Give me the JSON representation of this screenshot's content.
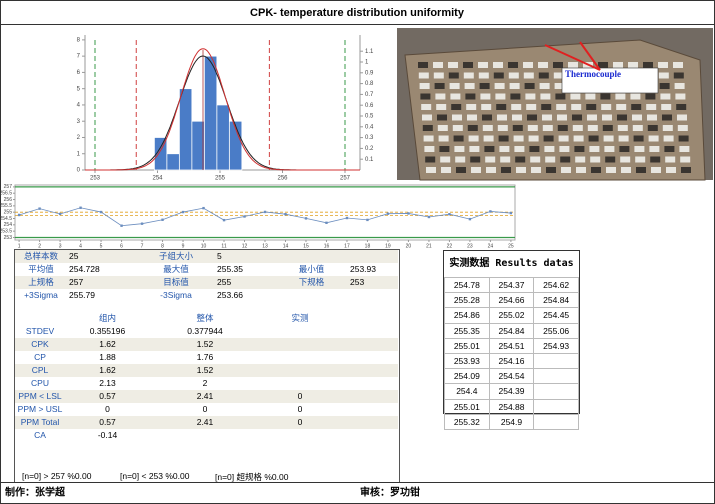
{
  "title": "CPK- temperature distribution uniformity",
  "histogram": {
    "type": "histogram",
    "bins": [
      253.95,
      254.15,
      254.35,
      254.55,
      254.75,
      254.95,
      255.15,
      255.35
    ],
    "counts": [
      2,
      1,
      5,
      3,
      7,
      4,
      3
    ],
    "color": "#4a7cc7",
    "xlim": [
      252.84,
      257.24
    ],
    "xticks": [
      253,
      254,
      255,
      256,
      257
    ],
    "ylim": [
      0,
      8.3
    ],
    "yticks": [
      0,
      1,
      2,
      3,
      4,
      5,
      6,
      7,
      8
    ],
    "y2lim": [
      0,
      1.25
    ],
    "y2ticks": [
      0.1,
      0.2,
      0.3,
      0.4,
      0.5,
      0.6,
      0.7,
      0.8,
      0.9,
      1,
      1.1
    ]
  },
  "run_chart": {
    "type": "line",
    "color": "#6c8ebf",
    "xlim": [
      0.8,
      25.2
    ],
    "xticks": [
      1,
      2,
      3,
      4,
      5,
      6,
      7,
      8,
      9,
      10,
      11,
      12,
      13,
      14,
      15,
      16,
      17,
      18,
      19,
      20,
      21,
      22,
      23,
      24,
      25
    ],
    "ylim": [
      252.8,
      257.15
    ],
    "yticks": [
      253,
      253.5,
      254,
      254.5,
      255,
      255.5,
      256,
      256.5,
      257
    ]
  },
  "photo": {
    "label": "Thermocouple"
  },
  "stats": {
    "summary": [
      [
        "总样本数",
        25,
        "子组大小",
        5
      ],
      [
        "平均值",
        254.728,
        "最大值",
        255.35,
        "最小值",
        253.93
      ],
      [
        "上规格",
        257,
        "目标值",
        255,
        "下规格",
        253
      ],
      [
        "+3Sigma",
        255.79,
        "-3Sigma",
        253.66
      ]
    ],
    "capability_header": [
      "组内",
      "整体",
      "实测"
    ],
    "capability": [
      [
        "STDEV",
        0.355196,
        0.377944
      ],
      [
        "CPK",
        1.62,
        1.52
      ],
      [
        "CP",
        1.88,
        1.76
      ],
      [
        "CPL",
        1.62,
        1.52
      ],
      [
        "CPU",
        2.13,
        2
      ],
      [
        "PPM < LSL",
        0.57,
        2.41,
        0
      ],
      [
        "PPM > USL",
        0,
        0,
        0
      ],
      [
        "PPM Total",
        0.57,
        2.41,
        0
      ],
      [
        "CA",
        -0.14
      ]
    ],
    "out_of_spec": [
      "[n=0] > 257 %0.00",
      "[n=0] < 253 %0.00",
      "[n=0] 超规格 %0.00"
    ]
  },
  "results": {
    "title": "实测数据 Results datas",
    "rows_per_column": 10,
    "values": [
      254.78,
      255.28,
      254.86,
      255.35,
      255.01,
      253.93,
      254.09,
      254.4,
      255.01,
      255.32,
      254.37,
      254.66,
      255.02,
      254.84,
      254.51,
      254.16,
      254.54,
      254.39,
      254.88,
      254.9,
      254.62,
      254.84,
      254.45,
      255.06,
      254.93
    ]
  },
  "footer": {
    "maker": "制作：张学超",
    "reviewer": "审核：罗功钳"
  }
}
